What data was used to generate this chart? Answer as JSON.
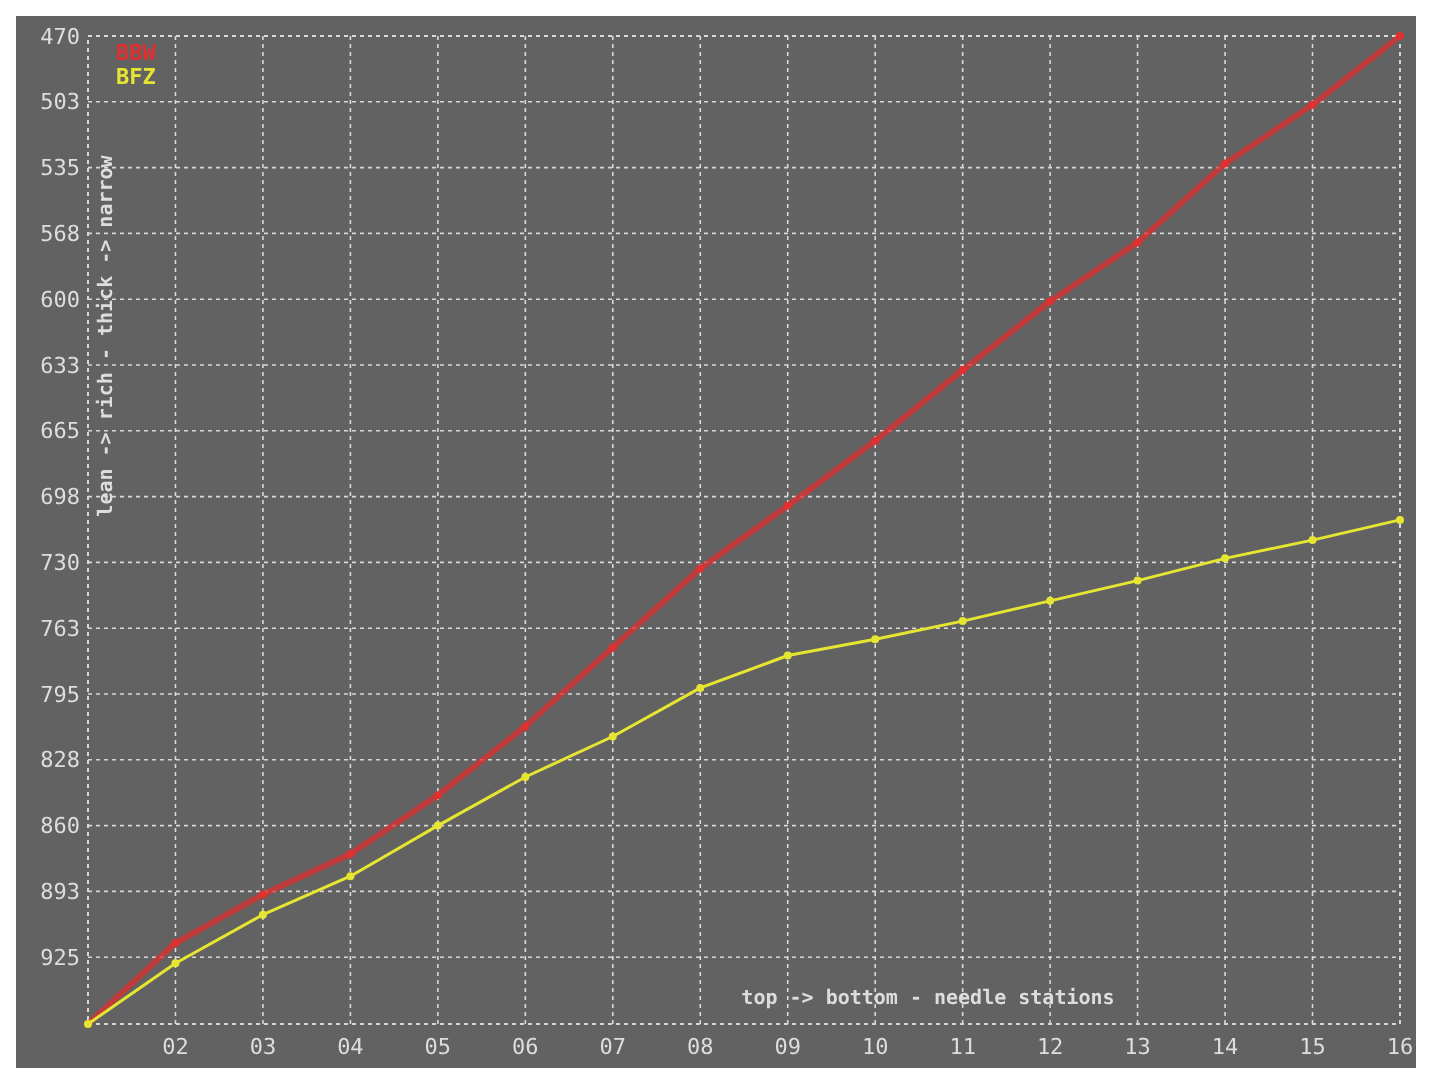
{
  "chart_data": {
    "type": "line",
    "xlabel": "top -> bottom - needle stations",
    "ylabel": "lean -> rich - thick -> narrow",
    "x": [
      1,
      2,
      3,
      4,
      5,
      6,
      7,
      8,
      9,
      10,
      11,
      12,
      13,
      14,
      15,
      16
    ],
    "series": [
      {
        "name": "BBW",
        "color": "#e03030",
        "values": [
          958,
          918,
          894,
          874,
          845,
          811,
          772,
          733,
          702,
          670,
          635,
          601,
          572,
          533,
          504,
          470
        ]
      },
      {
        "name": "BFZ",
        "color": "#e6e632",
        "values": [
          958,
          928,
          904,
          885,
          860,
          836,
          816,
          792,
          776,
          768,
          759,
          749,
          739,
          728,
          719,
          709
        ]
      }
    ],
    "xlim": [
      1,
      16
    ],
    "xticks": [
      {
        "value": 2,
        "label": "02"
      },
      {
        "value": 3,
        "label": "03"
      },
      {
        "value": 4,
        "label": "04"
      },
      {
        "value": 5,
        "label": "05"
      },
      {
        "value": 6,
        "label": "06"
      },
      {
        "value": 7,
        "label": "07"
      },
      {
        "value": 8,
        "label": "08"
      },
      {
        "value": 9,
        "label": "09"
      },
      {
        "value": 10,
        "label": "10"
      },
      {
        "value": 11,
        "label": "11"
      },
      {
        "value": 12,
        "label": "12"
      },
      {
        "value": 13,
        "label": "13"
      },
      {
        "value": 14,
        "label": "14"
      },
      {
        "value": 15,
        "label": "15"
      },
      {
        "value": 16,
        "label": "16"
      }
    ],
    "ylim": [
      958,
      470
    ],
    "yticks": [
      470,
      {
        "value": 502.5,
        "label": "503"
      },
      535,
      {
        "value": 567.5,
        "label": "568"
      },
      600,
      {
        "value": 632.5,
        "label": "633"
      },
      665,
      {
        "value": 697.5,
        "label": "698"
      },
      730,
      {
        "value": 762.5,
        "label": "763"
      },
      795,
      {
        "value": 827.5,
        "label": "828"
      },
      860,
      {
        "value": 892.5,
        "label": "893"
      },
      925
    ],
    "grid": true,
    "legend": "top left",
    "marker": "circle",
    "line_style": "solid"
  }
}
